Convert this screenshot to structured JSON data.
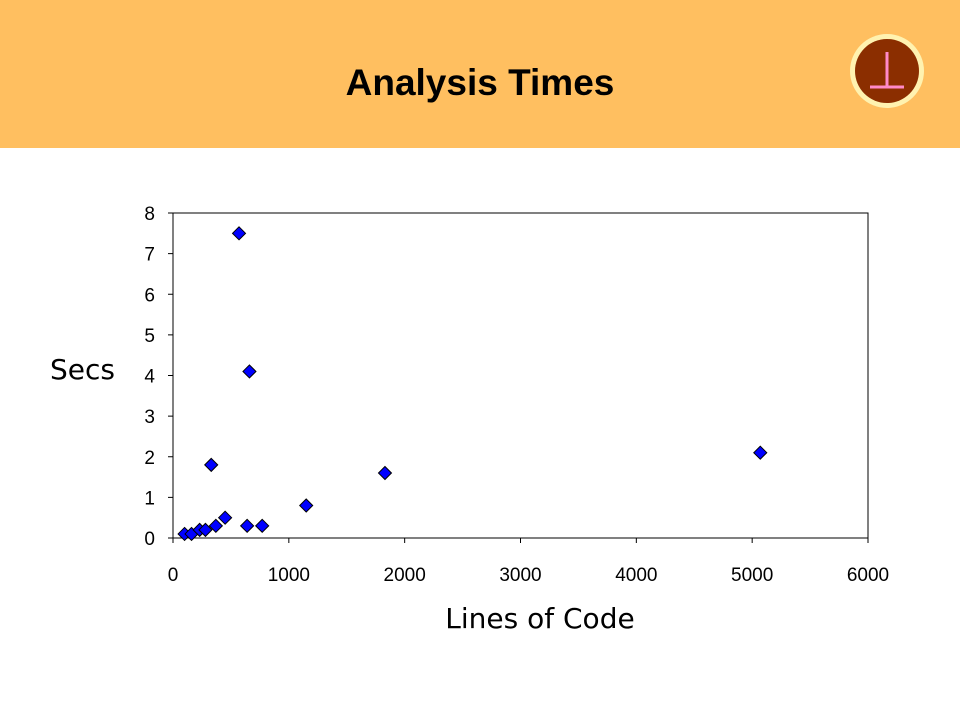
{
  "slide": {
    "title": "Analysis Times",
    "logo_icon": "perpendicular-symbol-icon",
    "logo_glyph": "⊥"
  },
  "colors": {
    "header_bg": "#FFBF60",
    "logo_fill": "#8B2E00",
    "logo_ring": "#FFF2B0",
    "logo_glyph": "#FF8AC8",
    "marker": "#0000FF"
  },
  "chart_data": {
    "type": "scatter",
    "xlabel": "Lines of Code",
    "ylabel": "Secs",
    "xlim": [
      0,
      6000
    ],
    "ylim": [
      0,
      8
    ],
    "x_ticks": [
      0,
      1000,
      2000,
      3000,
      4000,
      5000,
      6000
    ],
    "y_ticks": [
      0,
      1,
      2,
      3,
      4,
      5,
      6,
      7,
      8
    ],
    "grid": false,
    "marker": "diamond",
    "series": [
      {
        "points": [
          {
            "x": 100,
            "y": 0.1
          },
          {
            "x": 160,
            "y": 0.1
          },
          {
            "x": 230,
            "y": 0.2
          },
          {
            "x": 280,
            "y": 0.2
          },
          {
            "x": 330,
            "y": 1.8
          },
          {
            "x": 370,
            "y": 0.3
          },
          {
            "x": 450,
            "y": 0.5
          },
          {
            "x": 570,
            "y": 7.5
          },
          {
            "x": 640,
            "y": 0.3
          },
          {
            "x": 660,
            "y": 4.1
          },
          {
            "x": 770,
            "y": 0.3
          },
          {
            "x": 1150,
            "y": 0.8
          },
          {
            "x": 1830,
            "y": 1.6
          },
          {
            "x": 5070,
            "y": 2.1
          }
        ]
      }
    ]
  }
}
